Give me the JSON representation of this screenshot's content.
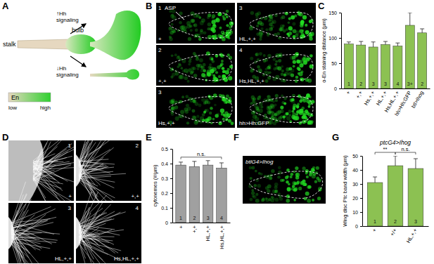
{
  "panel_labels": [
    "A",
    "B",
    "C",
    "D",
    "E",
    "F",
    "G"
  ],
  "diagram": {
    "stalk": "stalk",
    "bulb": "bulb",
    "up_label": [
      "↑Hh",
      "signaling"
    ],
    "down_label": [
      "↓Hh",
      "signaling"
    ],
    "legend_title": "En",
    "low": "low",
    "high": "high"
  },
  "images_b": {
    "stain": "α-En",
    "asp": "ASP",
    "tiles": [
      {
        "number": "1",
        "genotype": "+"
      },
      {
        "number": "2",
        "genotype": "+,+"
      },
      {
        "number": "3",
        "genotype": "Hs,+,+"
      },
      {
        "number": "3",
        "genotype": "HL,+,+"
      },
      {
        "number": "4",
        "genotype": "Hs,HL,+,+"
      },
      {
        "genotype": "hh>Hh:GFP"
      }
    ]
  },
  "images_d": {
    "tiles": [
      {
        "number": "1",
        "genotype": "+"
      },
      {
        "number": "2",
        "genotype": "+,+"
      },
      {
        "number": "3",
        "genotype": "HL,+,+"
      },
      {
        "number": "4",
        "genotype": "Hs,HL,+,+"
      }
    ]
  },
  "image_f": {
    "title": "btlG4>Ihog"
  },
  "chart_data": [
    {
      "type": "bar",
      "ylabel": "α-En staining distance (μm)",
      "categories": [
        "+",
        "+,+",
        "Hs,+,+",
        "HL,+,+",
        "Hs,HL,+,+",
        "hh>Hh:GFP",
        "btl>Ihog"
      ],
      "values": [
        88,
        86,
        82,
        87,
        84,
        125,
        110
      ],
      "errors": [
        4,
        7,
        10,
        6,
        6,
        25,
        8
      ],
      "bar_labels": [
        "1",
        "2",
        "3",
        "3",
        "4",
        "3+",
        "2"
      ],
      "ylim": [
        0,
        150
      ],
      "yticks": [
        0,
        50,
        100,
        150
      ],
      "color": "#8cc152"
    },
    {
      "type": "bar",
      "ylabel": "cytonemes (#/μm)",
      "categories": [
        "+",
        "+,+",
        "HL,+,+",
        "Hs,HL,+,+"
      ],
      "values": [
        0.39,
        0.38,
        0.39,
        0.37
      ],
      "errors": [
        0.02,
        0.035,
        0.03,
        0.035
      ],
      "bar_labels": [
        "1",
        "2",
        "3",
        "4"
      ],
      "ylim": [
        0,
        0.5
      ],
      "yticks": [
        0,
        0.1,
        0.2,
        0.3,
        0.4,
        0.5
      ],
      "color": "#a0a0a0",
      "annotations": [
        {
          "text": "n.s.",
          "between": [
            "+",
            "Hs,HL,+,+"
          ]
        }
      ]
    },
    {
      "type": "bar",
      "title": "ptcG4>Ihog",
      "ylabel": "Wing disc Ptc band width (μm)",
      "categories": [
        "+",
        "+/+",
        "HL,+,+"
      ],
      "values": [
        31,
        43,
        41
      ],
      "errors": [
        4,
        7,
        7
      ],
      "bar_labels": [
        "1",
        "2",
        "3"
      ],
      "ylim": [
        0,
        50
      ],
      "yticks": [
        0,
        10,
        20,
        30,
        40,
        50
      ],
      "color": "#8cc152",
      "annotations": [
        {
          "text": "**",
          "between": [
            "+",
            "+/+"
          ]
        },
        {
          "text": "n.s.",
          "between": [
            "+/+",
            "HL,+,+"
          ]
        }
      ]
    }
  ]
}
